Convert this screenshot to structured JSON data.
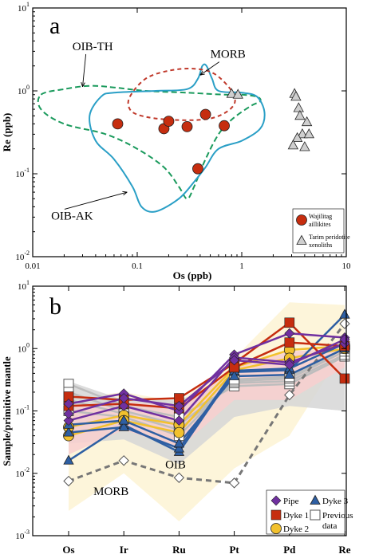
{
  "chart_data": [
    {
      "type": "scatter",
      "panel_label": "a",
      "xlabel": "Os (ppb)",
      "ylabel": "Re (ppb)",
      "xscale": "log",
      "yscale": "log",
      "xlim": [
        0.01,
        10
      ],
      "ylim": [
        0.01,
        10
      ],
      "x_ticks": [
        {
          "v": 0.01,
          "label": "0.01"
        },
        {
          "v": 0.1,
          "label": "0.1"
        },
        {
          "v": 1,
          "label": "1"
        },
        {
          "v": 10,
          "label": "10"
        }
      ],
      "y_ticks": [
        {
          "v": 0.01,
          "base": "10",
          "exp": "-2"
        },
        {
          "v": 0.1,
          "base": "10",
          "exp": "-1"
        },
        {
          "v": 1,
          "base": "10",
          "exp": "0"
        },
        {
          "v": 10,
          "base": "10",
          "exp": "1"
        }
      ],
      "fields": [
        {
          "name": "OIB-TH",
          "color": "#1a9a5c",
          "dash": "7,4",
          "points": [
            [
              0.012,
              0.9
            ],
            [
              0.02,
              1.05
            ],
            [
              0.035,
              1.15
            ],
            [
              0.06,
              1.1
            ],
            [
              0.12,
              1.0
            ],
            [
              0.3,
              0.95
            ],
            [
              0.7,
              0.9
            ],
            [
              1.0,
              0.9
            ],
            [
              1.4,
              0.85
            ],
            [
              1.5,
              0.75
            ],
            [
              1.2,
              0.65
            ],
            [
              0.8,
              0.45
            ],
            [
              0.6,
              0.3
            ],
            [
              0.45,
              0.15
            ],
            [
              0.35,
              0.07
            ],
            [
              0.3,
              0.05
            ],
            [
              0.25,
              0.07
            ],
            [
              0.18,
              0.12
            ],
            [
              0.1,
              0.2
            ],
            [
              0.05,
              0.3
            ],
            [
              0.02,
              0.4
            ],
            [
              0.012,
              0.6
            ]
          ]
        },
        {
          "name": "OIB-AK",
          "color": "#2a9fc6",
          "dash": "",
          "points": [
            [
              0.035,
              0.5
            ],
            [
              0.045,
              0.85
            ],
            [
              0.06,
              0.95
            ],
            [
              0.15,
              1.0
            ],
            [
              0.3,
              1.05
            ],
            [
              0.38,
              1.4
            ],
            [
              0.42,
              2.0
            ],
            [
              0.46,
              2.0
            ],
            [
              0.52,
              1.4
            ],
            [
              0.6,
              1.0
            ],
            [
              1.0,
              0.95
            ],
            [
              1.4,
              0.85
            ],
            [
              1.65,
              0.55
            ],
            [
              1.5,
              0.35
            ],
            [
              1.0,
              0.25
            ],
            [
              0.6,
              0.2
            ],
            [
              0.45,
              0.12
            ],
            [
              0.35,
              0.08
            ],
            [
              0.25,
              0.05
            ],
            [
              0.15,
              0.035
            ],
            [
              0.11,
              0.04
            ],
            [
              0.09,
              0.07
            ],
            [
              0.06,
              0.15
            ],
            [
              0.04,
              0.25
            ]
          ]
        },
        {
          "name": "MORB",
          "color": "#c0392b",
          "dash": "5,4",
          "points": [
            [
              0.085,
              0.85
            ],
            [
              0.12,
              1.4
            ],
            [
              0.2,
              1.75
            ],
            [
              0.35,
              1.85
            ],
            [
              0.55,
              1.6
            ],
            [
              0.8,
              1.0
            ],
            [
              0.85,
              0.7
            ],
            [
              0.65,
              0.52
            ],
            [
              0.42,
              0.45
            ],
            [
              0.2,
              0.45
            ],
            [
              0.11,
              0.5
            ],
            [
              0.085,
              0.6
            ]
          ]
        }
      ],
      "series": [
        {
          "name": "Wajilitag aillikites",
          "color": "#c62d0f",
          "marker": "circle",
          "points": [
            [
              0.065,
              0.4
            ],
            [
              0.18,
              0.35
            ],
            [
              0.2,
              0.43
            ],
            [
              0.3,
              0.37
            ],
            [
              0.45,
              0.52
            ],
            [
              0.68,
              0.38
            ],
            [
              0.38,
              0.115
            ]
          ]
        },
        {
          "name": "Tarim peridotite xenoliths",
          "color": "#cfcfcf",
          "marker": "triangle",
          "points": [
            [
              0.8,
              0.92
            ],
            [
              0.92,
              0.9
            ],
            [
              3.2,
              0.92
            ],
            [
              3.3,
              0.85
            ],
            [
              3.5,
              0.62
            ],
            [
              3.6,
              0.5
            ],
            [
              4.2,
              0.42
            ],
            [
              3.8,
              0.3
            ],
            [
              4.4,
              0.3
            ],
            [
              3.4,
              0.27
            ],
            [
              3.1,
              0.22
            ],
            [
              4.0,
              0.21
            ]
          ]
        }
      ],
      "annotations": [
        {
          "text": "OIB-TH",
          "x": 0.024,
          "y": 3.1,
          "arrow_to": [
            0.03,
            1.12
          ]
        },
        {
          "text": "MORB",
          "x": 0.5,
          "y": 2.5,
          "arrow_to": [
            0.4,
            1.55
          ]
        },
        {
          "text": "OIB-AK",
          "x": 0.015,
          "y": 0.028,
          "arrow_to": [
            0.08,
            0.06
          ]
        }
      ],
      "legend_position": "bottom-right"
    },
    {
      "type": "line",
      "panel_label": "b",
      "ylabel": "Sample/primitive mantle",
      "yscale": "log",
      "ylim": [
        0.001,
        10
      ],
      "categories": [
        "Os",
        "Ir",
        "Ru",
        "Pt",
        "Pd",
        "Re"
      ],
      "y_ticks": [
        {
          "v": 0.001,
          "base": "10",
          "exp": "-3"
        },
        {
          "v": 0.01,
          "base": "10",
          "exp": "-2"
        },
        {
          "v": 0.1,
          "base": "10",
          "exp": "-1"
        },
        {
          "v": 1,
          "base": "10",
          "exp": "0"
        },
        {
          "v": 10,
          "base": "10",
          "exp": "1"
        }
      ],
      "fields": [
        {
          "name": "OIB",
          "color": "#fdf3d3",
          "upper": [
            0.16,
            0.2,
            0.14,
            0.7,
            5.5,
            5.0
          ],
          "lower": [
            0.0025,
            0.01,
            0.0017,
            0.012,
            0.04,
            1.0
          ]
        },
        {
          "name": "Previous data field",
          "color": "#d6d6d6",
          "upper": [
            0.3,
            0.15,
            0.15,
            0.3,
            0.5,
            0.6
          ],
          "lower": [
            0.03,
            0.035,
            0.014,
            0.08,
            0.12,
            0.1
          ]
        },
        {
          "name": "Pipe field",
          "color": "#f8cfcf",
          "upper": [
            0.12,
            0.14,
            0.12,
            0.5,
            0.9,
            1.0
          ],
          "lower": [
            0.02,
            0.05,
            0.025,
            0.15,
            0.15,
            0.5
          ]
        }
      ],
      "series": [
        {
          "name": "Pipe",
          "color": "#7030a0",
          "marker": "diamond",
          "lines": [
            [
              0.13,
              0.19,
              0.1,
              0.8,
              1.75,
              1.5
            ],
            [
              0.07,
              0.12,
              0.07,
              0.72,
              0.6,
              1.2
            ],
            [
              0.09,
              0.16,
              0.12,
              0.65,
              0.55,
              1.4
            ]
          ]
        },
        {
          "name": "Dyke 1",
          "color": "#c62d0f",
          "marker": "square",
          "lines": [
            [
              0.17,
              0.15,
              0.16,
              0.58,
              2.6,
              0.33
            ],
            [
              0.12,
              0.13,
              0.11,
              0.5,
              1.25,
              1.1
            ]
          ]
        },
        {
          "name": "Dyke 2",
          "color": "#f2c12e",
          "marker": "circle",
          "lines": [
            [
              0.055,
              0.085,
              0.06,
              0.5,
              0.95,
              1.1
            ],
            [
              0.04,
              0.07,
              0.045,
              0.45,
              0.7,
              1.0
            ]
          ]
        },
        {
          "name": "Dyke 3",
          "color": "#2e5fa3",
          "marker": "triangle",
          "lines": [
            [
              0.016,
              0.06,
              0.022,
              0.42,
              0.45,
              3.5
            ],
            [
              0.045,
              0.055,
              0.025,
              0.44,
              0.48,
              1.2
            ],
            [
              0.06,
              0.07,
              0.03,
              0.36,
              0.38,
              1.0
            ]
          ]
        },
        {
          "name": "Previous data",
          "color": "#999999",
          "marker": "open-square",
          "lines": [
            [
              0.27,
              0.12,
              0.08,
              0.25,
              0.27,
              0.75
            ],
            [
              0.2,
              0.1,
              0.06,
              0.28,
              0.3,
              0.8
            ],
            [
              0.15,
              0.09,
              0.05,
              0.3,
              0.33,
              0.9
            ],
            [
              0.1,
              0.08,
              0.04,
              0.32,
              0.35,
              1.0
            ]
          ]
        },
        {
          "name": "MORB",
          "color": "#777777",
          "marker": "open-diamond",
          "dash": "7,5",
          "lines": [
            [
              0.0075,
              0.016,
              0.0085,
              0.007,
              0.18,
              2.5
            ]
          ]
        }
      ],
      "labels": [
        {
          "text": "OIB",
          "cat": 1.75,
          "y": 0.012
        },
        {
          "text": "MORB",
          "cat": 0.45,
          "y": 0.0045
        }
      ],
      "legend_position": "bottom-right"
    }
  ]
}
